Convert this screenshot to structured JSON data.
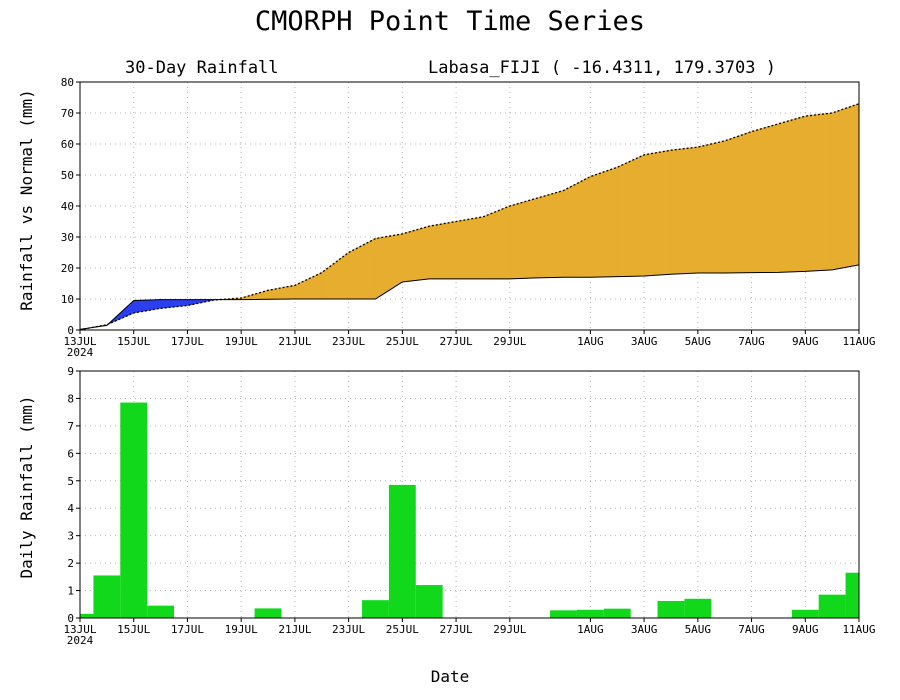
{
  "title": "CMORPH Point Time Series",
  "subtitle_left": "30-Day Rainfall",
  "subtitle_right": "Labasa_FIJI ( -16.4311, 179.3703 )",
  "xlabel": "Date",
  "colors": {
    "surplus": "#e6ad2e",
    "deficit": "#2b3ff0",
    "bars": "#11d81b",
    "grid": "#b4b4b4"
  },
  "chart_data": [
    {
      "type": "area",
      "panel": "top",
      "ylabel": "Rainfall vs Normal (mm)",
      "ylim": [
        0,
        80
      ],
      "yticks": [
        0,
        10,
        20,
        30,
        40,
        50,
        60,
        70,
        80
      ],
      "x": [
        "13JUL",
        "14JUL",
        "15JUL",
        "16JUL",
        "17JUL",
        "18JUL",
        "19JUL",
        "20JUL",
        "21JUL",
        "22JUL",
        "23JUL",
        "24JUL",
        "25JUL",
        "26JUL",
        "27JUL",
        "28JUL",
        "29JUL",
        "30JUL",
        "31JUL",
        "1AUG",
        "2AUG",
        "3AUG",
        "4AUG",
        "5AUG",
        "6AUG",
        "7AUG",
        "8AUG",
        "9AUG",
        "10AUG",
        "11AUG"
      ],
      "xticks": [
        "13JUL",
        "15JUL",
        "17JUL",
        "19JUL",
        "21JUL",
        "23JUL",
        "25JUL",
        "27JUL",
        "29JUL",
        "1AUG",
        "3AUG",
        "5AUG",
        "7AUG",
        "9AUG",
        "11AUG"
      ],
      "year_label": "2024",
      "grid": true,
      "series": [
        {
          "role": "observed",
          "values": [
            0.1,
            1.7,
            5.5,
            7.0,
            7.9,
            9.7,
            10.3,
            12.8,
            14.4,
            18.5,
            25.0,
            29.5,
            31.0,
            33.5,
            35.0,
            36.5,
            40.0,
            42.5,
            45.0,
            49.5,
            52.5,
            56.5,
            58.0,
            59.0,
            61.0,
            64.0,
            66.5,
            69.0,
            70.0,
            73.0
          ]
        },
        {
          "role": "normal",
          "values": [
            0.2,
            1.5,
            9.5,
            9.8,
            9.8,
            9.8,
            9.8,
            9.9,
            10.0,
            10.0,
            10.0,
            10.0,
            15.5,
            16.5,
            16.5,
            16.5,
            16.5,
            16.8,
            17.0,
            17.0,
            17.2,
            17.4,
            18.0,
            18.4,
            18.4,
            18.5,
            18.6,
            18.9,
            19.4,
            21.0
          ]
        }
      ]
    },
    {
      "type": "bar",
      "panel": "bottom",
      "ylabel": "Daily Rainfall (mm)",
      "ylim": [
        0,
        9
      ],
      "yticks": [
        0,
        1,
        2,
        3,
        4,
        5,
        6,
        7,
        8,
        9
      ],
      "categories": [
        "13JUL",
        "14JUL",
        "15JUL",
        "16JUL",
        "17JUL",
        "18JUL",
        "19JUL",
        "20JUL",
        "21JUL",
        "22JUL",
        "23JUL",
        "24JUL",
        "25JUL",
        "26JUL",
        "27JUL",
        "28JUL",
        "29JUL",
        "30JUL",
        "31JUL",
        "1AUG",
        "2AUG",
        "3AUG",
        "4AUG",
        "5AUG",
        "6AUG",
        "7AUG",
        "8AUG",
        "9AUG",
        "10AUG",
        "11AUG"
      ],
      "values": [
        0.15,
        1.55,
        7.85,
        0.45,
        0,
        0,
        0,
        0.35,
        0,
        0,
        0,
        0.65,
        4.85,
        1.2,
        0,
        0,
        0,
        0,
        0.28,
        0.3,
        0.34,
        0,
        0.62,
        0.7,
        0,
        0,
        0,
        0.3,
        0.85,
        1.65
      ],
      "xticks": [
        "13JUL",
        "15JUL",
        "17JUL",
        "19JUL",
        "21JUL",
        "23JUL",
        "25JUL",
        "27JUL",
        "29JUL",
        "1AUG",
        "3AUG",
        "5AUG",
        "7AUG",
        "9AUG",
        "11AUG"
      ],
      "year_label": "2024",
      "grid": true
    }
  ]
}
